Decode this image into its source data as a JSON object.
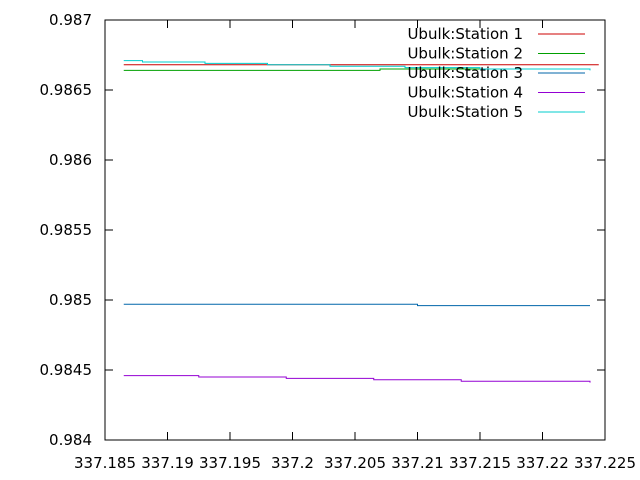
{
  "chart_data": {
    "type": "line",
    "title": "",
    "xlabel": "",
    "ylabel": "",
    "xlim": [
      337.185,
      337.225
    ],
    "ylim": [
      0.984,
      0.987
    ],
    "grid": false,
    "legend_position": "top-right",
    "x_ticks": [
      337.185,
      337.19,
      337.195,
      337.2,
      337.205,
      337.21,
      337.215,
      337.22,
      337.225
    ],
    "x_tick_labels": [
      "337.185",
      "337.19",
      "337.195",
      "337.2",
      "337.205",
      "337.21",
      "337.215",
      "337.22",
      "337.225"
    ],
    "y_ticks": [
      0.984,
      0.9845,
      0.985,
      0.9855,
      0.986,
      0.9865,
      0.987
    ],
    "y_tick_labels": [
      "0.984",
      "0.9845",
      "0.985",
      "0.9855",
      "0.986",
      "0.9865",
      "0.987"
    ],
    "series": [
      {
        "name": "Ubulk:Station 1",
        "color": "#cc0000",
        "x": [
          337.1865,
          337.193,
          337.2,
          337.207,
          337.214,
          337.221,
          337.2245
        ],
        "y": [
          0.98668,
          0.98668,
          0.98668,
          0.98668,
          0.98668,
          0.98668,
          0.98668
        ]
      },
      {
        "name": "Ubulk:Station 2",
        "color": "#00a000",
        "x": [
          337.1865,
          337.193,
          337.2,
          337.207,
          337.214,
          337.221,
          337.2238
        ],
        "y": [
          0.98664,
          0.98664,
          0.98664,
          0.98665,
          0.98665,
          0.98665,
          0.98665
        ]
      },
      {
        "name": "Ubulk:Station 3",
        "color": "#0066aa",
        "x": [
          337.1865,
          337.193,
          337.2,
          337.207,
          337.21,
          337.217,
          337.2238
        ],
        "y": [
          0.98497,
          0.98497,
          0.98497,
          0.98497,
          0.98496,
          0.98496,
          0.98496
        ]
      },
      {
        "name": "Ubulk:Station 4",
        "color": "#9400d3",
        "x": [
          337.1865,
          337.1925,
          337.1995,
          337.2065,
          337.2135,
          337.22,
          337.2238
        ],
        "y": [
          0.98446,
          0.98445,
          0.98444,
          0.98443,
          0.98442,
          0.98442,
          0.98441
        ]
      },
      {
        "name": "Ubulk:Station 5",
        "color": "#00cccc",
        "x": [
          337.1865,
          337.188,
          337.193,
          337.198,
          337.203,
          337.209,
          337.215,
          337.2238
        ],
        "y": [
          0.98671,
          0.9867,
          0.98669,
          0.98668,
          0.98667,
          0.98666,
          0.98665,
          0.98664
        ]
      }
    ]
  }
}
